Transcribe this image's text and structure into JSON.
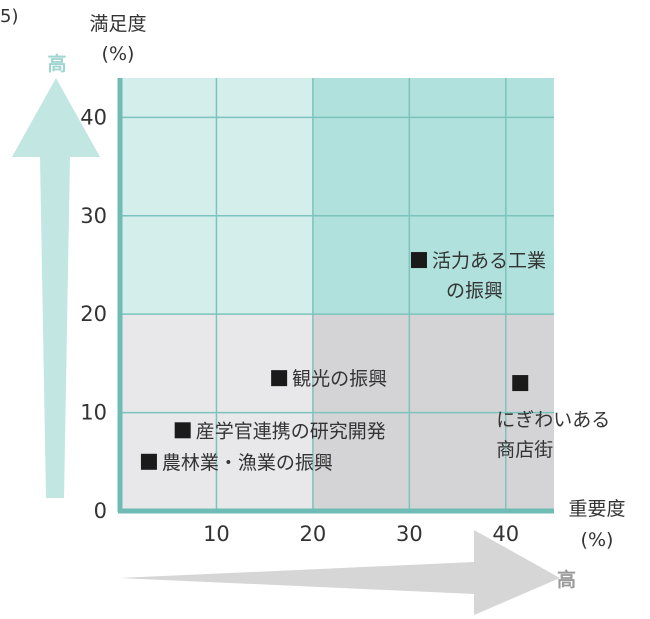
{
  "corner_text": "5)",
  "colors": {
    "quad_top_left": "#d4eeec",
    "quad_top_right": "#b1e1dc",
    "quad_bottom_left": "#e8e8ea",
    "quad_bottom_right": "#d4d4d6",
    "grid": "#7cc3bd",
    "axis": "#6fbcb5",
    "arrow_up": "#c2e6e2",
    "arrow_right": "#d6d6d6",
    "high_text_y": "#9fd6d0",
    "high_text_x": "#9a9a9a",
    "marker": "#1a1a1a"
  },
  "chart_data": {
    "type": "scatter",
    "title": "",
    "xlabel": [
      "重要度",
      "(%)"
    ],
    "ylabel": [
      "満足度",
      "(%)"
    ],
    "x_ticks": [
      "10",
      "20",
      "30",
      "40"
    ],
    "y_ticks": [
      "0",
      "10",
      "20",
      "30",
      "40"
    ],
    "xlim": [
      0,
      45
    ],
    "ylim": [
      0,
      44
    ],
    "grid": true,
    "x_high_label": "高",
    "y_high_label": "高",
    "quadrant_split": {
      "x": 20,
      "y": 20
    },
    "points": [
      {
        "x": 31,
        "y": 25.5,
        "label": [
          "活力ある工業",
          "の振興"
        ],
        "label_side": "right"
      },
      {
        "x": 16.5,
        "y": 13.5,
        "label": [
          "観光の振興"
        ],
        "label_side": "right"
      },
      {
        "x": 41.5,
        "y": 13,
        "label": [
          "にぎわいある",
          "商店街"
        ],
        "label_side": "below"
      },
      {
        "x": 6.5,
        "y": 8.2,
        "label": [
          "産学官連携の研究開発"
        ],
        "label_side": "right"
      },
      {
        "x": 3,
        "y": 5,
        "label": [
          "農林業・漁業の振興"
        ],
        "label_side": "right"
      }
    ]
  }
}
